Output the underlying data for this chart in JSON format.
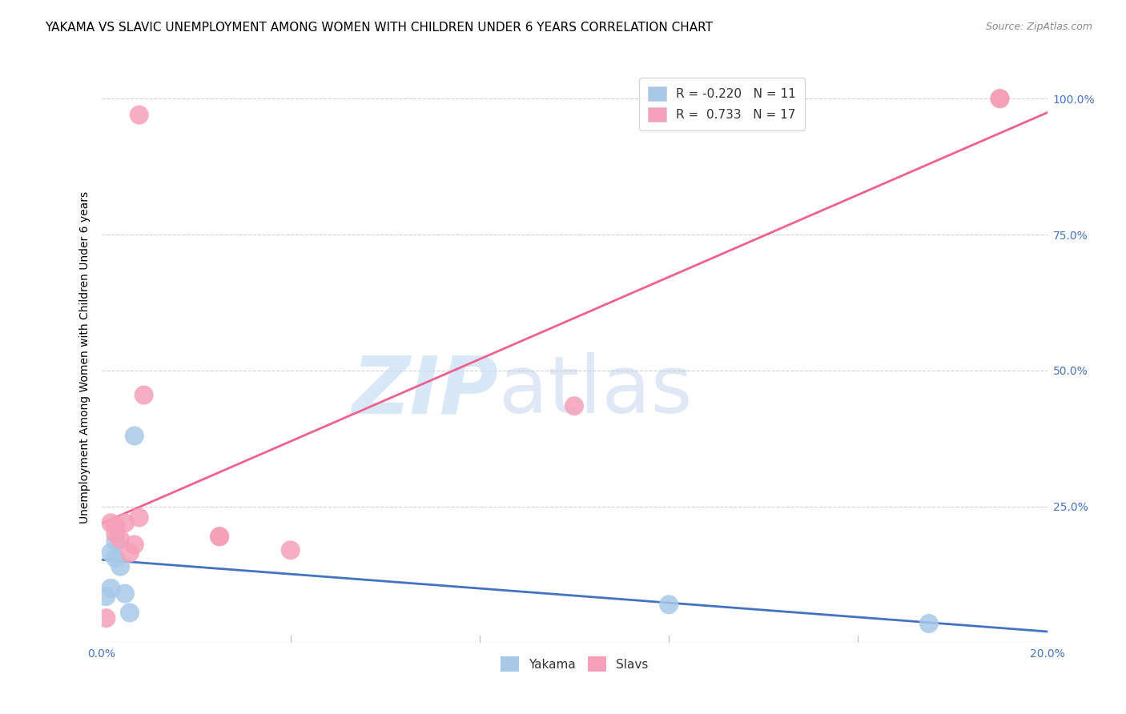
{
  "title": "YAKAMA VS SLAVIC UNEMPLOYMENT AMONG WOMEN WITH CHILDREN UNDER 6 YEARS CORRELATION CHART",
  "source": "Source: ZipAtlas.com",
  "ylabel": "Unemployment Among Women with Children Under 6 years",
  "xlim": [
    0.0,
    0.2
  ],
  "ylim": [
    0.0,
    1.05
  ],
  "xticks": [
    0.0,
    0.04,
    0.08,
    0.12,
    0.16,
    0.2
  ],
  "xticklabels": [
    "0.0%",
    "",
    "",
    "",
    "",
    "20.0%"
  ],
  "yticks": [
    0.0,
    0.25,
    0.5,
    0.75,
    1.0
  ],
  "yticklabels": [
    "",
    "25.0%",
    "50.0%",
    "75.0%",
    "100.0%"
  ],
  "yakama_x": [
    0.001,
    0.002,
    0.002,
    0.003,
    0.003,
    0.004,
    0.005,
    0.006,
    0.007,
    0.12,
    0.175
  ],
  "yakama_y": [
    0.085,
    0.1,
    0.165,
    0.155,
    0.185,
    0.14,
    0.09,
    0.055,
    0.38,
    0.07,
    0.035
  ],
  "slavs_x": [
    0.001,
    0.002,
    0.003,
    0.003,
    0.004,
    0.005,
    0.006,
    0.007,
    0.008,
    0.008,
    0.009,
    0.025,
    0.025,
    0.04,
    0.1,
    0.19,
    0.19
  ],
  "slavs_y": [
    0.045,
    0.22,
    0.2,
    0.215,
    0.19,
    0.22,
    0.165,
    0.18,
    0.23,
    0.97,
    0.455,
    0.195,
    0.195,
    0.17,
    0.435,
    1.0,
    1.0
  ],
  "yakama_color": "#a8c8e8",
  "slavs_color": "#f5a0b8",
  "yakama_line_color": "#4472c4",
  "slavs_line_color": "#f06090",
  "yakama_R": -0.22,
  "yakama_N": 11,
  "slavs_R": 0.733,
  "slavs_N": 17,
  "watermark_zip": "ZIP",
  "watermark_atlas": "atlas",
  "background_color": "#ffffff",
  "grid_color": "#d0d0d0",
  "title_fontsize": 11,
  "axis_label_fontsize": 10,
  "tick_fontsize": 10,
  "legend_fontsize": 11,
  "source_fontsize": 9
}
